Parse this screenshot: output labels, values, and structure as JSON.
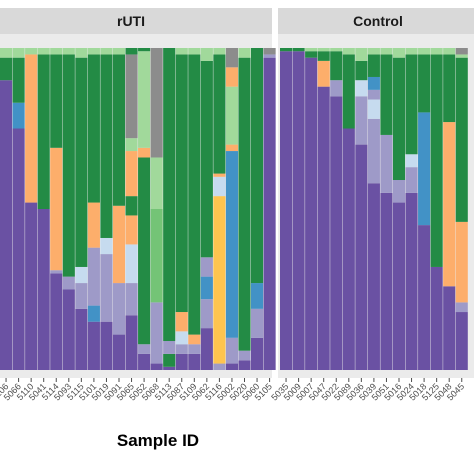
{
  "chart_data": {
    "type": "bar",
    "stacked": true,
    "normalized": true,
    "xlabel": "Sample ID",
    "ylabel": "",
    "ylim": [
      0,
      1
    ],
    "legend": "none",
    "facets": [
      {
        "title": "rUTI",
        "samples": [
          {
            "id": "5106",
            "segments": [
              {
                "c": "purple",
                "v": 0.9
              },
              {
                "c": "dgreen",
                "v": 0.07
              },
              {
                "c": "lgreen",
                "v": 0.03
              }
            ]
          },
          {
            "id": "5066",
            "segments": [
              {
                "c": "purple",
                "v": 0.75
              },
              {
                "c": "blue",
                "v": 0.08
              },
              {
                "c": "dgreen",
                "v": 0.14
              },
              {
                "c": "lgreen",
                "v": 0.03
              }
            ]
          },
          {
            "id": "5110",
            "segments": [
              {
                "c": "purple",
                "v": 0.52
              },
              {
                "c": "orange",
                "v": 0.46
              },
              {
                "c": "lgreen",
                "v": 0.02
              }
            ]
          },
          {
            "id": "5041",
            "segments": [
              {
                "c": "purple",
                "v": 0.5
              },
              {
                "c": "dgreen",
                "v": 0.48
              },
              {
                "c": "lgreen",
                "v": 0.02
              }
            ]
          },
          {
            "id": "5114",
            "segments": [
              {
                "c": "purple",
                "v": 0.3
              },
              {
                "c": "lavender",
                "v": 0.01
              },
              {
                "c": "orange",
                "v": 0.38
              },
              {
                "c": "dgreen",
                "v": 0.29
              },
              {
                "c": "lgreen",
                "v": 0.02
              }
            ]
          },
          {
            "id": "5093",
            "segments": [
              {
                "c": "purple",
                "v": 0.25
              },
              {
                "c": "lavender",
                "v": 0.04
              },
              {
                "c": "dgreen",
                "v": 0.69
              },
              {
                "c": "lgreen",
                "v": 0.02
              }
            ]
          },
          {
            "id": "5115",
            "segments": [
              {
                "c": "purple",
                "v": 0.19
              },
              {
                "c": "lavender",
                "v": 0.08
              },
              {
                "c": "paleblue",
                "v": 0.05
              },
              {
                "c": "dgreen",
                "v": 0.65
              },
              {
                "c": "lgreen",
                "v": 0.03
              }
            ]
          },
          {
            "id": "5101",
            "segments": [
              {
                "c": "purple",
                "v": 0.15
              },
              {
                "c": "blue",
                "v": 0.05
              },
              {
                "c": "lavender",
                "v": 0.18
              },
              {
                "c": "orange",
                "v": 0.14
              },
              {
                "c": "dgreen",
                "v": 0.46
              },
              {
                "c": "lgreen",
                "v": 0.02
              }
            ]
          },
          {
            "id": "5019",
            "segments": [
              {
                "c": "purple",
                "v": 0.15
              },
              {
                "c": "lavender",
                "v": 0.21
              },
              {
                "c": "paleblue",
                "v": 0.05
              },
              {
                "c": "dgreen",
                "v": 0.57
              },
              {
                "c": "lgreen",
                "v": 0.02
              }
            ]
          },
          {
            "id": "5091",
            "segments": [
              {
                "c": "purple",
                "v": 0.11
              },
              {
                "c": "lavender",
                "v": 0.16
              },
              {
                "c": "orange",
                "v": 0.24
              },
              {
                "c": "dgreen",
                "v": 0.47
              },
              {
                "c": "lgreen",
                "v": 0.02
              }
            ]
          },
          {
            "id": "5065",
            "segments": [
              {
                "c": "purple",
                "v": 0.17
              },
              {
                "c": "lavender",
                "v": 0.1
              },
              {
                "c": "paleblue",
                "v": 0.12
              },
              {
                "c": "orange",
                "v": 0.09
              },
              {
                "c": "dgreen",
                "v": 0.06
              },
              {
                "c": "orange",
                "v": 0.14
              },
              {
                "c": "lgreen",
                "v": 0.04
              },
              {
                "c": "grey",
                "v": 0.26
              },
              {
                "c": "dgreen",
                "v": 0.02
              }
            ]
          },
          {
            "id": "5052",
            "segments": [
              {
                "c": "purple",
                "v": 0.05
              },
              {
                "c": "lavender",
                "v": 0.03
              },
              {
                "c": "dgreen",
                "v": 0.58
              },
              {
                "c": "orange",
                "v": 0.03
              },
              {
                "c": "lgreen",
                "v": 0.3
              },
              {
                "c": "dgreen",
                "v": 0.01
              }
            ]
          },
          {
            "id": "5068",
            "segments": [
              {
                "c": "purple",
                "v": 0.02
              },
              {
                "c": "lavender",
                "v": 0.19
              },
              {
                "c": "mgreen",
                "v": 0.29
              },
              {
                "c": "lgreen",
                "v": 0.16
              },
              {
                "c": "grey",
                "v": 0.34
              }
            ]
          },
          {
            "id": "5113",
            "segments": [
              {
                "c": "purple",
                "v": 0.01
              },
              {
                "c": "dgreen",
                "v": 0.04
              },
              {
                "c": "lavender",
                "v": 0.04
              },
              {
                "c": "dgreen",
                "v": 0.91
              }
            ]
          },
          {
            "id": "5087",
            "segments": [
              {
                "c": "purple",
                "v": 0.05
              },
              {
                "c": "lavender",
                "v": 0.03
              },
              {
                "c": "paleblue",
                "v": 0.04
              },
              {
                "c": "orange",
                "v": 0.06
              },
              {
                "c": "dgreen",
                "v": 0.8
              },
              {
                "c": "lgreen",
                "v": 0.02
              }
            ]
          },
          {
            "id": "5109",
            "segments": [
              {
                "c": "purple",
                "v": 0.05
              },
              {
                "c": "lavender",
                "v": 0.03
              },
              {
                "c": "orange",
                "v": 0.03
              },
              {
                "c": "dgreen",
                "v": 0.87
              },
              {
                "c": "lgreen",
                "v": 0.02
              }
            ]
          },
          {
            "id": "5062",
            "segments": [
              {
                "c": "purple",
                "v": 0.13
              },
              {
                "c": "lavender",
                "v": 0.09
              },
              {
                "c": "blue",
                "v": 0.07
              },
              {
                "c": "lavender",
                "v": 0.06
              },
              {
                "c": "dgreen",
                "v": 0.61
              },
              {
                "c": "lgreen",
                "v": 0.04
              }
            ]
          },
          {
            "id": "5116",
            "segments": [
              {
                "c": "lavender",
                "v": 0.02
              },
              {
                "c": "gold",
                "v": 0.52
              },
              {
                "c": "paleblue",
                "v": 0.06
              },
              {
                "c": "orange",
                "v": 0.01
              },
              {
                "c": "dgreen",
                "v": 0.37
              },
              {
                "c": "lgreen",
                "v": 0.02
              }
            ]
          },
          {
            "id": "5002",
            "segments": [
              {
                "c": "purple",
                "v": 0.02
              },
              {
                "c": "lavender",
                "v": 0.08
              },
              {
                "c": "blue",
                "v": 0.58
              },
              {
                "c": "orange",
                "v": 0.02
              },
              {
                "c": "lgreen",
                "v": 0.18
              },
              {
                "c": "orange",
                "v": 0.06
              },
              {
                "c": "grey",
                "v": 0.06
              }
            ]
          },
          {
            "id": "5020",
            "segments": [
              {
                "c": "purple",
                "v": 0.03
              },
              {
                "c": "lavender",
                "v": 0.03
              },
              {
                "c": "dgreen",
                "v": 0.91
              },
              {
                "c": "lgreen",
                "v": 0.03
              }
            ]
          },
          {
            "id": "5060",
            "segments": [
              {
                "c": "purple",
                "v": 0.1
              },
              {
                "c": "lavender",
                "v": 0.09
              },
              {
                "c": "blue",
                "v": 0.08
              },
              {
                "c": "dgreen",
                "v": 0.73
              }
            ]
          },
          {
            "id": "5105",
            "segments": [
              {
                "c": "purple",
                "v": 0.97
              },
              {
                "c": "lavender",
                "v": 0.01
              },
              {
                "c": "grey",
                "v": 0.02
              }
            ]
          }
        ]
      },
      {
        "title": "Control",
        "samples": [
          {
            "id": "5035",
            "segments": [
              {
                "c": "purple",
                "v": 0.99
              },
              {
                "c": "dgreen",
                "v": 0.01
              }
            ]
          },
          {
            "id": "5009",
            "segments": [
              {
                "c": "purple",
                "v": 0.99
              },
              {
                "c": "dgreen",
                "v": 0.01
              }
            ]
          },
          {
            "id": "5007",
            "segments": [
              {
                "c": "purple",
                "v": 0.97
              },
              {
                "c": "dgreen",
                "v": 0.02
              },
              {
                "c": "lgreen",
                "v": 0.01
              }
            ]
          },
          {
            "id": "5047",
            "segments": [
              {
                "c": "purple",
                "v": 0.88
              },
              {
                "c": "orange",
                "v": 0.08
              },
              {
                "c": "dgreen",
                "v": 0.03
              },
              {
                "c": "lgreen",
                "v": 0.01
              }
            ]
          },
          {
            "id": "5022",
            "segments": [
              {
                "c": "purple",
                "v": 0.85
              },
              {
                "c": "lavender",
                "v": 0.05
              },
              {
                "c": "dgreen",
                "v": 0.09
              },
              {
                "c": "lgreen",
                "v": 0.01
              }
            ]
          },
          {
            "id": "5089",
            "segments": [
              {
                "c": "purple",
                "v": 0.75
              },
              {
                "c": "dgreen",
                "v": 0.23
              },
              {
                "c": "lgreen",
                "v": 0.02
              }
            ]
          },
          {
            "id": "5036",
            "segments": [
              {
                "c": "purple",
                "v": 0.7
              },
              {
                "c": "lavender",
                "v": 0.15
              },
              {
                "c": "paleblue",
                "v": 0.05
              },
              {
                "c": "dgreen",
                "v": 0.06
              },
              {
                "c": "lgreen",
                "v": 0.04
              }
            ]
          },
          {
            "id": "5039",
            "segments": [
              {
                "c": "purple",
                "v": 0.58
              },
              {
                "c": "lavender",
                "v": 0.2
              },
              {
                "c": "paleblue",
                "v": 0.06
              },
              {
                "c": "lavender",
                "v": 0.03
              },
              {
                "c": "blue",
                "v": 0.04
              },
              {
                "c": "dgreen",
                "v": 0.07
              },
              {
                "c": "lgreen",
                "v": 0.02
              }
            ]
          },
          {
            "id": "5051",
            "segments": [
              {
                "c": "purple",
                "v": 0.55
              },
              {
                "c": "lavender",
                "v": 0.18
              },
              {
                "c": "dgreen",
                "v": 0.25
              },
              {
                "c": "lgreen",
                "v": 0.02
              }
            ]
          },
          {
            "id": "5016",
            "segments": [
              {
                "c": "purple",
                "v": 0.52
              },
              {
                "c": "lavender",
                "v": 0.07
              },
              {
                "c": "dgreen",
                "v": 0.38
              },
              {
                "c": "lgreen",
                "v": 0.03
              }
            ]
          },
          {
            "id": "5024",
            "segments": [
              {
                "c": "purple",
                "v": 0.55
              },
              {
                "c": "lavender",
                "v": 0.08
              },
              {
                "c": "paleblue",
                "v": 0.04
              },
              {
                "c": "dgreen",
                "v": 0.31
              },
              {
                "c": "lgreen",
                "v": 0.02
              }
            ]
          },
          {
            "id": "5018",
            "segments": [
              {
                "c": "purple",
                "v": 0.45
              },
              {
                "c": "blue",
                "v": 0.35
              },
              {
                "c": "dgreen",
                "v": 0.18
              },
              {
                "c": "lgreen",
                "v": 0.02
              }
            ]
          },
          {
            "id": "5125",
            "segments": [
              {
                "c": "purple",
                "v": 0.32
              },
              {
                "c": "dgreen",
                "v": 0.66
              },
              {
                "c": "lgreen",
                "v": 0.02
              }
            ]
          },
          {
            "id": "5048",
            "segments": [
              {
                "c": "purple",
                "v": 0.26
              },
              {
                "c": "orange",
                "v": 0.51
              },
              {
                "c": "dgreen",
                "v": 0.21
              },
              {
                "c": "lgreen",
                "v": 0.02
              }
            ]
          },
          {
            "id": "5045",
            "segments": [
              {
                "c": "purple",
                "v": 0.18
              },
              {
                "c": "lavender",
                "v": 0.03
              },
              {
                "c": "orange",
                "v": 0.25
              },
              {
                "c": "dgreen",
                "v": 0.51
              },
              {
                "c": "lgreen",
                "v": 0.01
              },
              {
                "c": "grey",
                "v": 0.02
              }
            ]
          }
        ]
      }
    ]
  },
  "colors": {
    "purple": "#6a51a3",
    "lavender": "#9e9ac8",
    "paleblue": "#c6dbef",
    "blue": "#4292c6",
    "orange": "#fdae6b",
    "gold": "#fec44f",
    "dgreen": "#238b45",
    "mgreen": "#74c476",
    "lgreen": "#a1d99b",
    "grey": "#8c8c8c",
    "panel_bg": "#ebebeb",
    "strip_bg": "#d9d9d9"
  }
}
